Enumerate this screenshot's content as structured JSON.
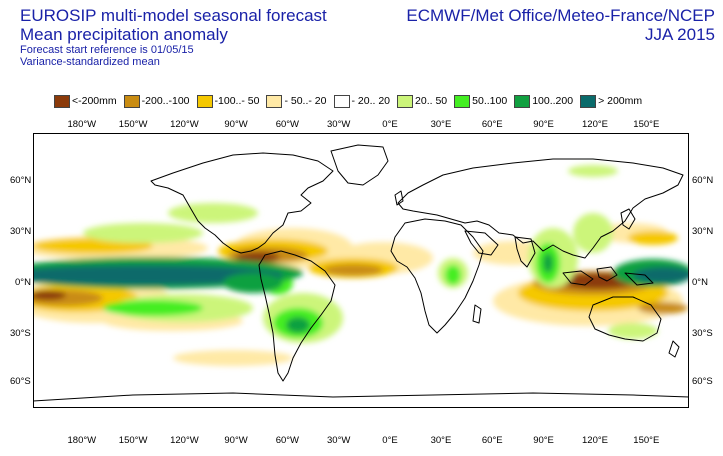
{
  "title": {
    "line1": "EUROSIP multi-model seasonal forecast",
    "line2": "Mean precipitation anomaly",
    "line3": "Forecast start reference is 01/05/15",
    "line4": "Variance-standardized mean"
  },
  "provider": {
    "line1": "ECMWF/Met Office/Meteo-France/NCEP",
    "line2": "JJA 2015"
  },
  "legend": [
    {
      "label": "<-200mm",
      "color": "#8b3a0a"
    },
    {
      "label": "-200..-100",
      "color": "#c98c12"
    },
    {
      "label": "-100..- 50",
      "color": "#f5c800"
    },
    {
      "label": "- 50..- 20",
      "color": "#ffe9a6"
    },
    {
      "label": "- 20.. 20",
      "color": "#ffffff"
    },
    {
      "label": "20.. 50",
      "color": "#ccf57a"
    },
    {
      "label": "50..100",
      "color": "#44ee22"
    },
    {
      "label": "100..200",
      "color": "#11a040"
    },
    {
      "label": "> 200mm",
      "color": "#0a6b6b"
    }
  ],
  "lon_labels": [
    "180°W",
    "150°W",
    "120°W",
    "90°W",
    "60°W",
    "30°W",
    "0°E",
    "30°E",
    "60°E",
    "90°E",
    "120°E",
    "150°E"
  ],
  "lat_labels": [
    "60°N",
    "30°N",
    "0°N",
    "30°S",
    "60°S"
  ]
}
